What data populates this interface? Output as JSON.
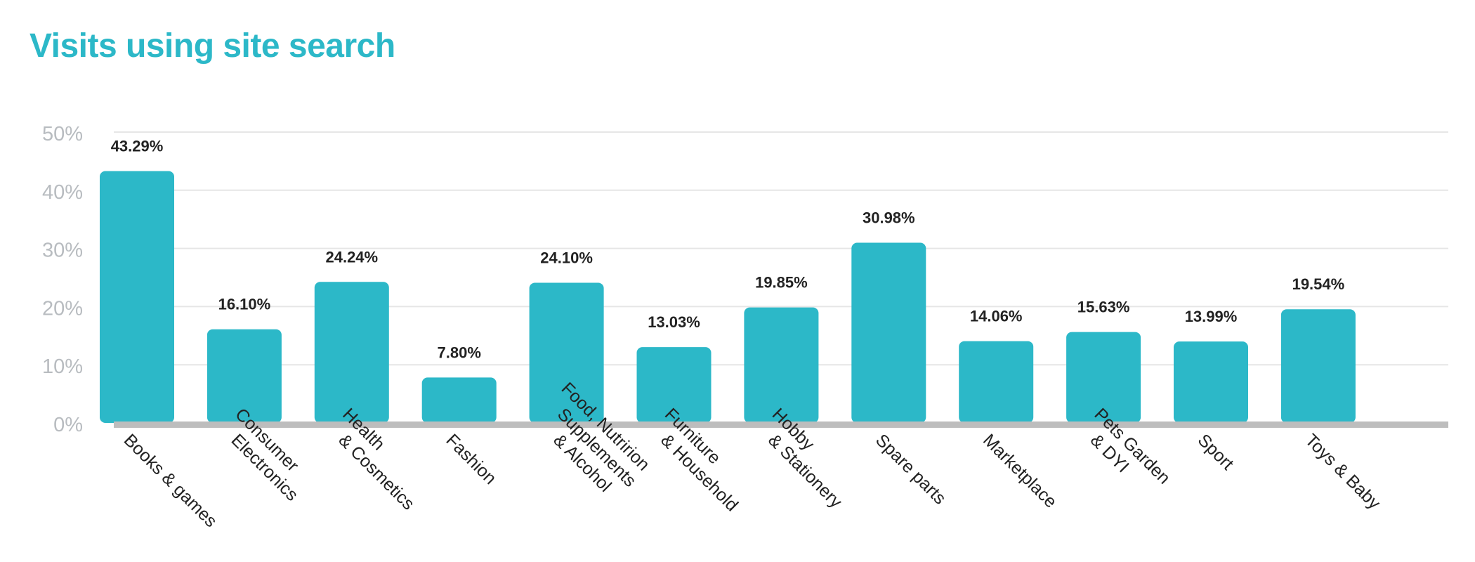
{
  "chart_data": {
    "type": "bar",
    "title": "Visits using site search",
    "categories": [
      "Books & games",
      "Consumer Electronics",
      "Health & Cosmetics",
      "Fashion",
      "Food, Nutririon Supplements & Alcohol",
      "Furniture & Household",
      "Hobby & Stationery",
      "Spare parts",
      "Marketplace",
      "Pets Garden & DYI",
      "Sport",
      "Toys & Baby"
    ],
    "category_lines": [
      [
        "Books & games"
      ],
      [
        "Consumer",
        "Electronics"
      ],
      [
        "Health",
        "& Cosmetics"
      ],
      [
        "Fashion"
      ],
      [
        "Food, Nutririon",
        "Supplements",
        "& Alcohol"
      ],
      [
        "Furniture",
        "& Household"
      ],
      [
        "Hobby",
        "& Stationery"
      ],
      [
        "Spare parts"
      ],
      [
        "Marketplace"
      ],
      [
        "Pets Garden",
        "& DYI"
      ],
      [
        "Sport"
      ],
      [
        "Toys & Baby"
      ]
    ],
    "values": [
      43.29,
      16.1,
      24.24,
      7.8,
      24.1,
      13.03,
      19.85,
      30.98,
      14.06,
      15.63,
      13.99,
      19.54
    ],
    "value_labels": [
      "43.29%",
      "16.10%",
      "24.24%",
      "7.80%",
      "24.10%",
      "13.03%",
      "19.85%",
      "30.98%",
      "14.06%",
      "15.63%",
      "13.99%",
      "19.54%"
    ],
    "yticks": [
      0,
      10,
      20,
      30,
      40,
      50
    ],
    "ytick_labels": [
      "0%",
      "10%",
      "20%",
      "30%",
      "40%",
      "50%"
    ],
    "ylim": [
      0,
      50
    ],
    "xlabel": "",
    "ylabel": "",
    "grid": true,
    "legend": "none",
    "colors": {
      "bar": "#2cb8c8",
      "title": "#2cb8c8",
      "tick_label": "#b8bcc0",
      "grid": "#e6e6e6",
      "baseline": "#bdbdbd",
      "value_label": "#222222",
      "category_label": "#222222"
    }
  }
}
